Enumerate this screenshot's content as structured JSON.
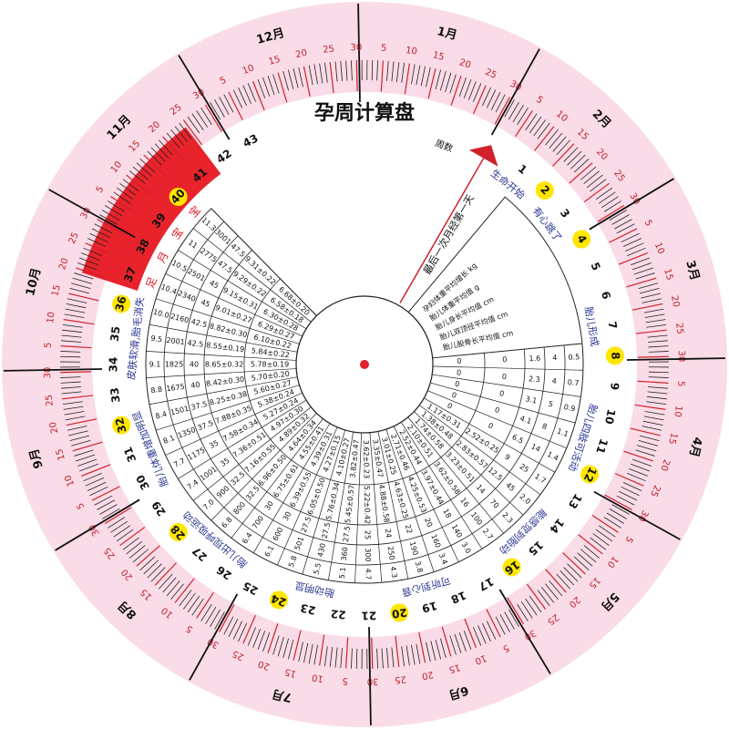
{
  "title": "孕周计算盘",
  "start_label": "最后一次月经第一天",
  "week_label": "周数",
  "weeks": [
    1,
    2,
    3,
    4,
    5,
    6,
    7,
    8,
    9,
    10,
    11,
    12,
    13,
    14,
    15,
    16,
    17,
    18,
    19,
    20,
    21,
    22,
    23,
    24,
    25,
    26,
    27,
    28,
    29,
    30,
    31,
    32,
    33,
    34,
    35,
    36,
    37,
    38,
    39,
    40,
    41,
    42,
    43
  ],
  "months": [
    "1月",
    "2月",
    "3月",
    "4月",
    "5月",
    "6月",
    "7月",
    "8月",
    "9月",
    "10月",
    "11月",
    "12月"
  ],
  "day_labels": [
    "5",
    "10",
    "15",
    "20",
    "25",
    "30"
  ],
  "full_term": [
    "足",
    "月",
    "宝",
    "宝"
  ],
  "milestones": [
    "生命开始",
    "有心跳了",
    "胎儿形成",
    "胎儿四肢可活动",
    "能感觉到胎动",
    "可听到心音",
    "胎动明显",
    "胎儿出现呼吸运动",
    "胎儿体重增加明显",
    "皮肤软滑,胎毛消失"
  ],
  "table": {
    "headers": [
      "孕妇体重平均增长 kg",
      "胎儿体重平均值 g",
      "胎儿身长平均值 cm",
      "胎儿双顶径平均值 cm",
      "胎儿股骨长平均值 cm"
    ],
    "rows": [
      [
        "0.5",
        "4",
        "1.6",
        "0",
        "0"
      ],
      [
        "0.7",
        "4",
        "2.3",
        "0",
        "0"
      ],
      [
        "0.9",
        "5",
        "3.1",
        "0",
        "0"
      ],
      [
        "1.1",
        "8",
        "4.1",
        "0",
        "0"
      ],
      [
        "1.4",
        "14",
        "6.5",
        "0",
        "0"
      ],
      [
        "1.7",
        "25",
        "9",
        "2.52±0.25",
        "1.17±0.31"
      ],
      [
        "2.0",
        "45",
        "12.5",
        "2.83±0.57",
        "1.38±0.48"
      ],
      [
        "2.3",
        "70",
        "14",
        "3.23±0.51",
        "1.74±0.58"
      ],
      [
        "2.7",
        "100",
        "16",
        "3.62±0.58",
        "2.10±0.51"
      ],
      [
        "3.0",
        "140",
        "18",
        "3.97±0.44",
        "2.52±0.44"
      ],
      [
        "3.4",
        "160",
        "20",
        "4.25±0.53",
        "2.71±0.46"
      ],
      [
        "3.8",
        "190",
        "22",
        "4.63±0.25",
        "3.01±0.25"
      ],
      [
        "4.3",
        "250",
        "24",
        "4.88±0.58",
        "3.35±0.47"
      ],
      [
        "4.7",
        "300",
        "25",
        "5.22±0.42",
        "3.62±0.23"
      ],
      [
        "5.1",
        "360",
        "27.5",
        "5.45±0.57",
        "3.82±0.47"
      ],
      [
        "5.5",
        "430",
        "27.5",
        "5.76±0.34",
        "4.10±0.27"
      ],
      [
        "5.8",
        "501",
        "27.5",
        "6.05±0.50",
        "4.27±0.15"
      ],
      [
        "6.1",
        "600",
        "30",
        "6.39±0.55",
        "4.39±0.31"
      ],
      [
        "6.4",
        "700",
        "30",
        "6.75±0.61",
        "4.55±0.41"
      ],
      [
        "6.8",
        "800",
        "32.5",
        "6.96±0.50",
        "4.64±0.34"
      ],
      [
        "7.0",
        "900",
        "32.5",
        "7.16±0.55",
        "4.89±0.32"
      ],
      [
        "7.4",
        "1001",
        "35",
        "7.36±0.51",
        "4.97±0.30"
      ],
      [
        "7.7",
        "1175",
        "35",
        "7.58±0.34",
        "5.27±0.24"
      ],
      [
        "8.1",
        "1350",
        "37.5",
        "7.88±0.35",
        "5.38±0.24"
      ],
      [
        "8.4",
        "1501",
        "37.5",
        "8.25±0.38",
        "5.60±0.27"
      ],
      [
        "8.8",
        "1675",
        "40",
        "8.42±0.30",
        "5.70±0.20"
      ],
      [
        "9.1",
        "1825",
        "40",
        "8.65±0.32",
        "5.78±0.19"
      ],
      [
        "9.5",
        "2001",
        "42.5",
        "8.55±0.19",
        "5.84±0.22"
      ],
      [
        "10.0",
        "2160",
        "42.5",
        "8.82±0.30",
        "6.10±0.22"
      ],
      [
        "10.4",
        "2340",
        "45",
        "9.01±0.27",
        "6.29±0.27"
      ],
      [
        "10.5",
        "2501",
        "45",
        "9.15±0.31",
        "6.30±0.28"
      ],
      [
        "11",
        "2775",
        "47.5",
        "9.29±0.22",
        "6.58±0.18"
      ],
      [
        "11.3",
        "3001",
        "47.5",
        "9.31±0.22",
        "6.68±0.20"
      ]
    ]
  }
}
